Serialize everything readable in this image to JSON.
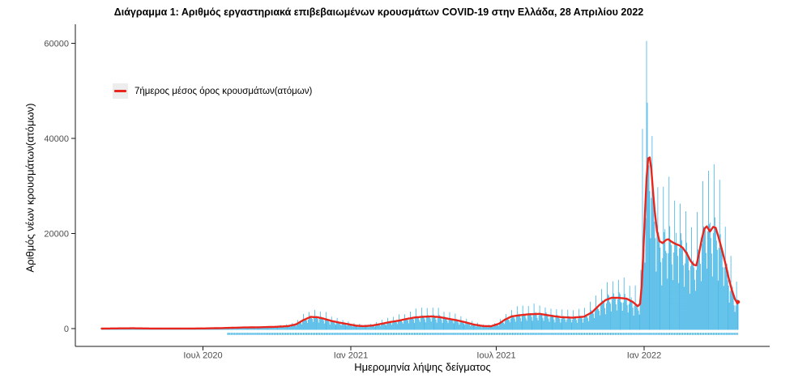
{
  "title": "Διάγραμμα 1: Αριθμός εργαστηριακά επιβεβαιωμένων κρουσμάτων COVID-19 στην Ελλάδα, 28 Απριλίου 2022",
  "legend": {
    "label": "7ήμερος μέσος όρος κρουσμάτων(ατόμων)"
  },
  "axes": {
    "y_label": "Αριθμός νέων κρουσμάτων(ατόμων)",
    "x_label": "Ημερομηνία λήψης δείγματος"
  },
  "colors": {
    "bar": "#29abe2",
    "avg_line": "#e8261d",
    "axis_text": "#4d4d4d",
    "axis_line": "#1a1a1a",
    "legend_key_bg": "#ededed"
  },
  "chart_data": {
    "type": "bar",
    "overlay": "line",
    "title": "Διάγραμμα 1: Αριθμός εργαστηριακά επιβεβαιωμένων κρουσμάτων COVID-19 στην Ελλάδα, 28 Απριλίου 2022",
    "xlabel": "Ημερομηνία λήψης δείγματος",
    "ylabel": "Αριθμός νέων κρουσμάτων(ατόμων)",
    "series_label": "7ήμερος μέσος όρος κρουσμάτων(ατόμων)",
    "ylim": [
      0,
      62000
    ],
    "yticks": [
      0,
      20000,
      40000,
      60000
    ],
    "xticks": [
      {
        "label": "Ιουλ 2020",
        "date": "2020-07-01"
      },
      {
        "label": "Ιαν 2021",
        "date": "2021-01-01"
      },
      {
        "label": "Ιουλ 2021",
        "date": "2021-07-01"
      },
      {
        "label": "Ιαν 2022",
        "date": "2022-01-01"
      }
    ],
    "date_range": [
      "2020-02-26",
      "2022-04-28"
    ],
    "avg_anchor_points": [
      [
        "2020-02-26",
        3
      ],
      [
        "2020-03-15",
        40
      ],
      [
        "2020-04-05",
        65
      ],
      [
        "2020-04-25",
        25
      ],
      [
        "2020-06-01",
        15
      ],
      [
        "2020-07-01",
        30
      ],
      [
        "2020-07-25",
        110
      ],
      [
        "2020-08-20",
        230
      ],
      [
        "2020-09-10",
        280
      ],
      [
        "2020-10-01",
        380
      ],
      [
        "2020-10-15",
        520
      ],
      [
        "2020-10-25",
        900
      ],
      [
        "2020-11-03",
        1800
      ],
      [
        "2020-11-12",
        2450
      ],
      [
        "2020-11-20",
        2400
      ],
      [
        "2020-11-28",
        2100
      ],
      [
        "2020-12-08",
        1600
      ],
      [
        "2020-12-18",
        1250
      ],
      [
        "2020-12-28",
        950
      ],
      [
        "2021-01-08",
        600
      ],
      [
        "2021-01-18",
        520
      ],
      [
        "2021-01-28",
        650
      ],
      [
        "2021-02-08",
        1000
      ],
      [
        "2021-02-18",
        1350
      ],
      [
        "2021-03-01",
        1650
      ],
      [
        "2021-03-12",
        2050
      ],
      [
        "2021-03-22",
        2350
      ],
      [
        "2021-04-02",
        2500
      ],
      [
        "2021-04-12",
        2550
      ],
      [
        "2021-04-22",
        2400
      ],
      [
        "2021-05-03",
        2050
      ],
      [
        "2021-05-13",
        1750
      ],
      [
        "2021-05-23",
        1350
      ],
      [
        "2021-06-03",
        850
      ],
      [
        "2021-06-14",
        550
      ],
      [
        "2021-06-24",
        480
      ],
      [
        "2021-07-04",
        1000
      ],
      [
        "2021-07-12",
        1900
      ],
      [
        "2021-07-20",
        2550
      ],
      [
        "2021-07-30",
        2800
      ],
      [
        "2021-08-10",
        3000
      ],
      [
        "2021-08-24",
        3100
      ],
      [
        "2021-09-07",
        2700
      ],
      [
        "2021-09-20",
        2400
      ],
      [
        "2021-10-04",
        2300
      ],
      [
        "2021-10-18",
        2500
      ],
      [
        "2021-10-28",
        3400
      ],
      [
        "2021-11-06",
        4900
      ],
      [
        "2021-11-14",
        6000
      ],
      [
        "2021-11-22",
        6500
      ],
      [
        "2021-12-01",
        6450
      ],
      [
        "2021-12-10",
        6300
      ],
      [
        "2021-12-18",
        5600
      ],
      [
        "2021-12-24",
        4700
      ],
      [
        "2021-12-27",
        5200
      ],
      [
        "2021-12-29",
        9000
      ],
      [
        "2021-12-31",
        16000
      ],
      [
        "2022-01-02",
        24000
      ],
      [
        "2022-01-04",
        31500
      ],
      [
        "2022-01-06",
        35800
      ],
      [
        "2022-01-08",
        36000
      ],
      [
        "2022-01-10",
        33500
      ],
      [
        "2022-01-12",
        29000
      ],
      [
        "2022-01-14",
        25000
      ],
      [
        "2022-01-17",
        20500
      ],
      [
        "2022-01-20",
        18400
      ],
      [
        "2022-01-24",
        18000
      ],
      [
        "2022-01-28",
        18600
      ],
      [
        "2022-01-31",
        18800
      ],
      [
        "2022-02-04",
        18300
      ],
      [
        "2022-02-09",
        17800
      ],
      [
        "2022-02-14",
        17500
      ],
      [
        "2022-02-18",
        17000
      ],
      [
        "2022-02-23",
        15800
      ],
      [
        "2022-02-28",
        14200
      ],
      [
        "2022-03-04",
        13400
      ],
      [
        "2022-03-07",
        13300
      ],
      [
        "2022-03-10",
        15500
      ],
      [
        "2022-03-14",
        19000
      ],
      [
        "2022-03-17",
        21000
      ],
      [
        "2022-03-20",
        21500
      ],
      [
        "2022-03-24",
        20400
      ],
      [
        "2022-03-28",
        21400
      ],
      [
        "2022-03-31",
        21200
      ],
      [
        "2022-04-04",
        19000
      ],
      [
        "2022-04-08",
        16500
      ],
      [
        "2022-04-12",
        13800
      ],
      [
        "2022-04-16",
        10800
      ],
      [
        "2022-04-20",
        8200
      ],
      [
        "2022-04-24",
        6200
      ],
      [
        "2022-04-27",
        5300
      ],
      [
        "2022-04-28",
        5600
      ]
    ],
    "weekday_factors": [
      0.55,
      0.9,
      1.65,
      1.1,
      1.05,
      0.95,
      0.8
    ],
    "noise_amplitude": 0.09,
    "rug_start": "2020-08-01",
    "bar_overrides": [
      [
        "2021-12-30",
        42000
      ],
      [
        "2022-01-04",
        60500
      ],
      [
        "2022-01-05",
        47500
      ],
      [
        "2022-01-11",
        40500
      ]
    ]
  }
}
